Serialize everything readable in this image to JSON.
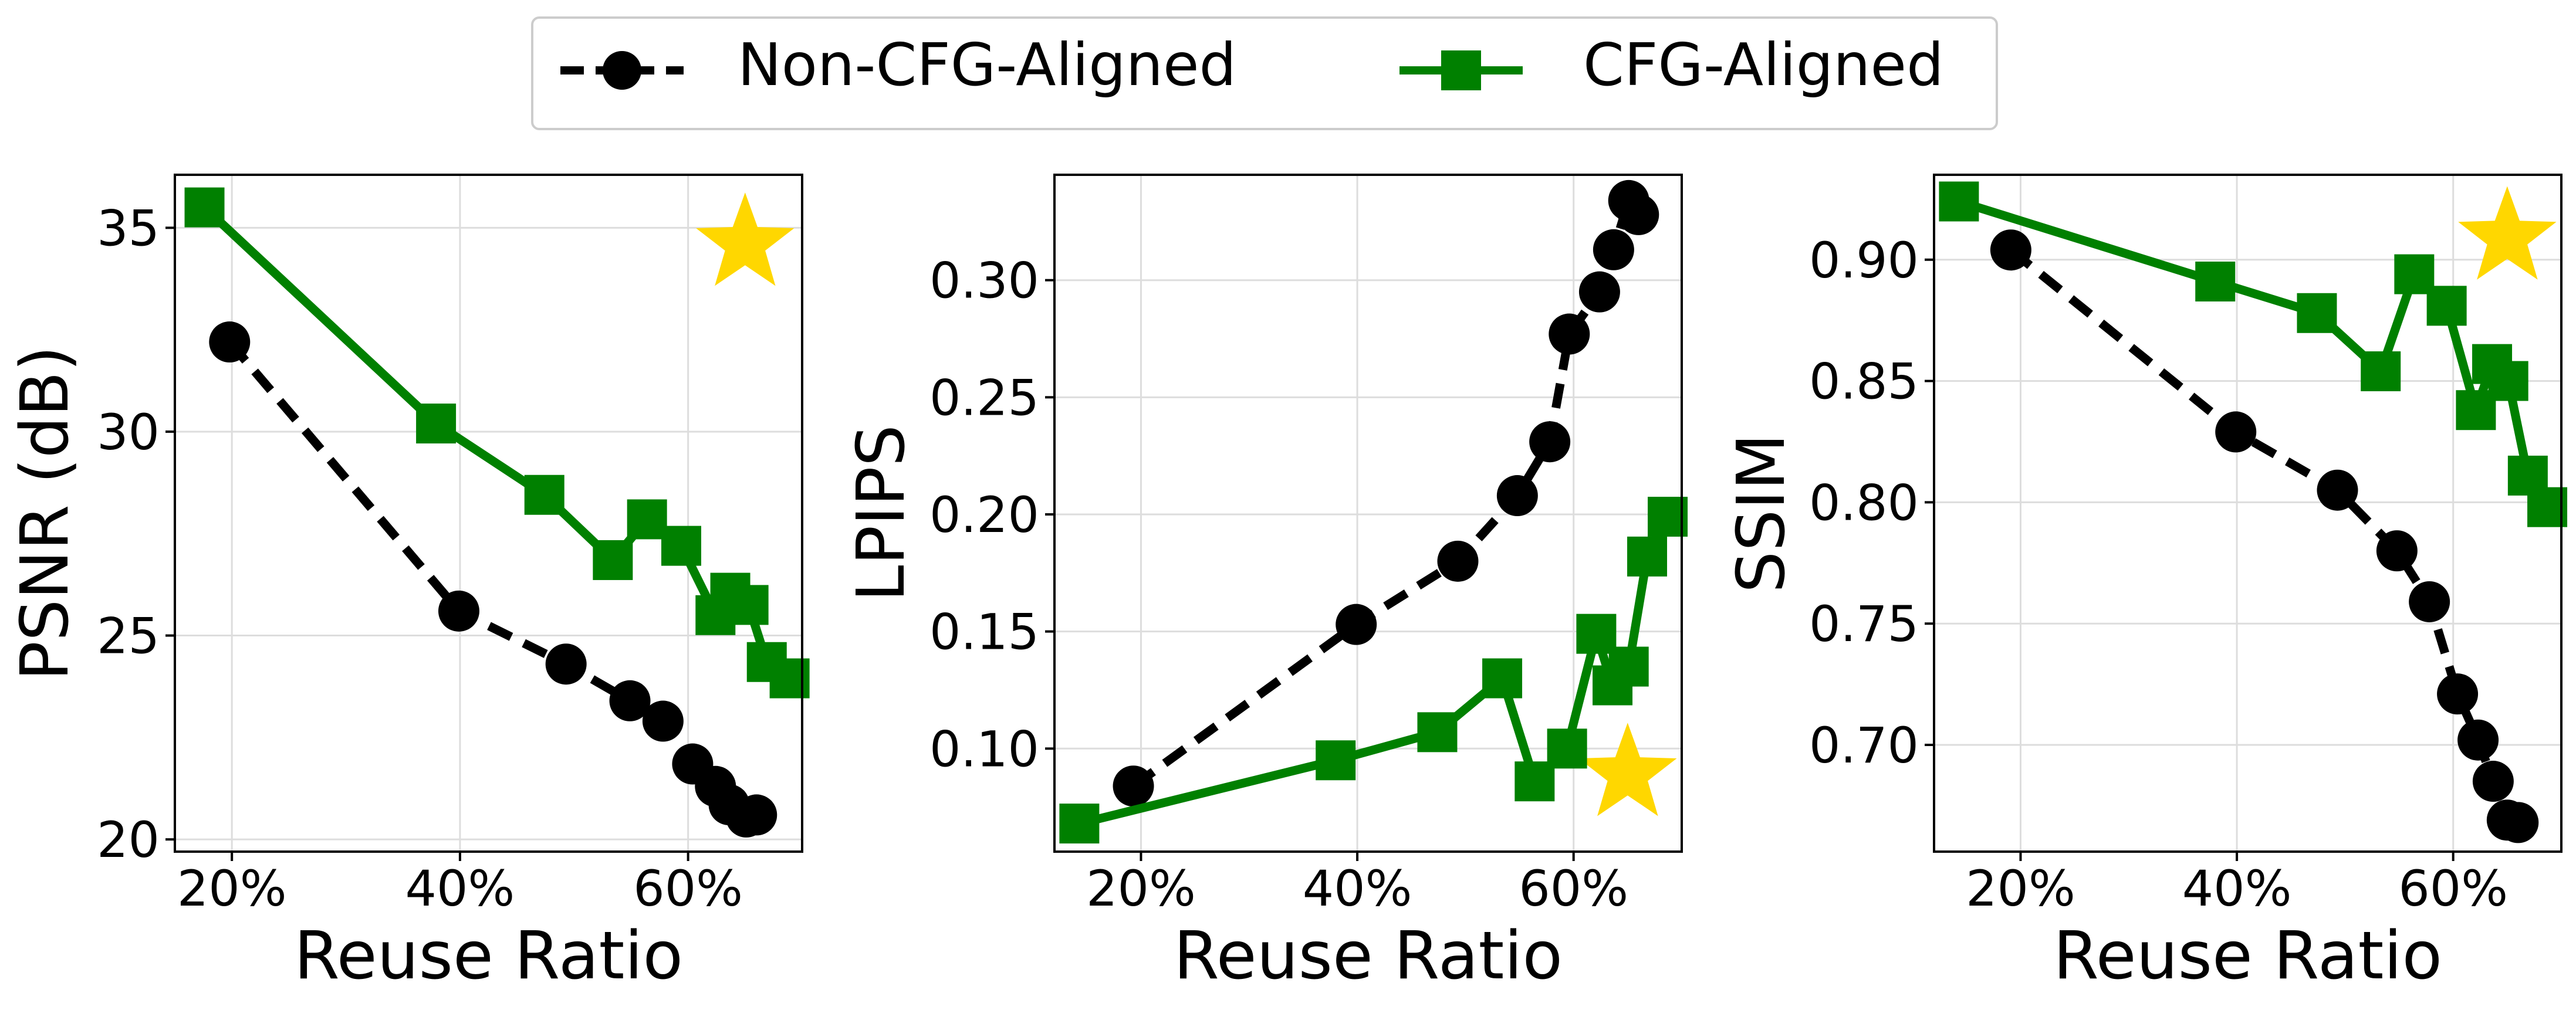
{
  "legend": {
    "position": "top-center",
    "entries": [
      {
        "label": "Non-CFG-Aligned",
        "color": "#000000",
        "marker": "circle",
        "line": "dashed"
      },
      {
        "label": "CFG-Aligned",
        "color": "#008000",
        "marker": "square",
        "line": "solid"
      }
    ]
  },
  "chart_data": [
    {
      "type": "line",
      "title": "",
      "xlabel": "Reuse Ratio",
      "ylabel": "PSNR (dB)",
      "xlim": [
        15,
        70
      ],
      "ylim": [
        19.7,
        36.3
      ],
      "xticks": [
        20,
        40,
        60
      ],
      "xtick_labels": [
        "20%",
        "40%",
        "60%"
      ],
      "yticks": [
        20,
        25,
        30,
        35
      ],
      "ytick_labels": [
        "20",
        "25",
        "30",
        "35"
      ],
      "grid": true,
      "star": {
        "x": 65,
        "y": 34.6,
        "color": "#FFD700"
      },
      "series": [
        {
          "name": "Non-CFG-Aligned",
          "x": [
            19.8,
            39.9,
            49.3,
            54.9,
            57.8,
            60.4,
            62.4,
            63.6,
            65.1,
            66.0
          ],
          "y": [
            32.2,
            25.6,
            24.3,
            23.4,
            22.9,
            21.85,
            21.3,
            20.85,
            20.55,
            20.6
          ]
        },
        {
          "name": "CFG-Aligned",
          "x": [
            17.6,
            37.9,
            47.4,
            53.4,
            56.4,
            59.4,
            62.4,
            63.7,
            65.3,
            66.9,
            68.9
          ],
          "y": [
            35.5,
            30.2,
            28.45,
            26.85,
            27.85,
            27.2,
            25.5,
            26.05,
            25.75,
            24.35,
            23.95
          ]
        }
      ]
    },
    {
      "type": "line",
      "title": "",
      "xlabel": "Reuse Ratio",
      "ylabel": "LPIPS",
      "xlim": [
        12,
        70
      ],
      "ylim": [
        0.056,
        0.345
      ],
      "xticks": [
        20,
        40,
        60
      ],
      "xtick_labels": [
        "20%",
        "40%",
        "60%"
      ],
      "yticks": [
        0.1,
        0.15,
        0.2,
        0.25,
        0.3
      ],
      "ytick_labels": [
        "0.10",
        "0.15",
        "0.20",
        "0.25",
        "0.30"
      ],
      "grid": true,
      "star": {
        "x": 65,
        "y": 0.089,
        "color": "#FFD700"
      },
      "series": [
        {
          "name": "Non-CFG-Aligned",
          "x": [
            19.3,
            39.9,
            49.3,
            54.8,
            57.8,
            59.6,
            62.4,
            63.7,
            65.1,
            66.0
          ],
          "y": [
            0.084,
            0.153,
            0.18,
            0.208,
            0.231,
            0.277,
            0.295,
            0.313,
            0.334,
            0.328
          ]
        },
        {
          "name": "CFG-Aligned",
          "x": [
            14.3,
            38.0,
            47.4,
            53.4,
            56.4,
            59.4,
            62.1,
            63.6,
            65.1,
            66.8,
            68.7
          ],
          "y": [
            0.068,
            0.095,
            0.107,
            0.13,
            0.086,
            0.1,
            0.149,
            0.127,
            0.135,
            0.182,
            0.199
          ]
        }
      ]
    },
    {
      "type": "line",
      "title": "",
      "xlabel": "Reuse Ratio",
      "ylabel": "SSIM",
      "xlim": [
        12,
        70
      ],
      "ylim": [
        0.656,
        0.935
      ],
      "xticks": [
        20,
        40,
        60
      ],
      "xtick_labels": [
        "20%",
        "40%",
        "60%"
      ],
      "yticks": [
        0.7,
        0.75,
        0.8,
        0.85,
        0.9
      ],
      "ytick_labels": [
        "0.70",
        "0.75",
        "0.80",
        "0.85",
        "0.90"
      ],
      "grid": true,
      "star": {
        "x": 65,
        "y": 0.909,
        "color": "#FFD700"
      },
      "series": [
        {
          "name": "Non-CFG-Aligned",
          "x": [
            19.1,
            39.9,
            49.3,
            54.8,
            57.8,
            60.4,
            62.3,
            63.7,
            65.0,
            66.0
          ],
          "y": [
            0.904,
            0.829,
            0.805,
            0.78,
            0.759,
            0.721,
            0.702,
            0.685,
            0.669,
            0.668
          ]
        },
        {
          "name": "CFG-Aligned",
          "x": [
            14.3,
            38.0,
            47.4,
            53.3,
            56.4,
            59.4,
            62.1,
            63.6,
            65.1,
            66.9,
            68.7
          ],
          "y": [
            0.924,
            0.891,
            0.878,
            0.854,
            0.894,
            0.881,
            0.838,
            0.857,
            0.85,
            0.811,
            0.798
          ]
        }
      ]
    }
  ]
}
